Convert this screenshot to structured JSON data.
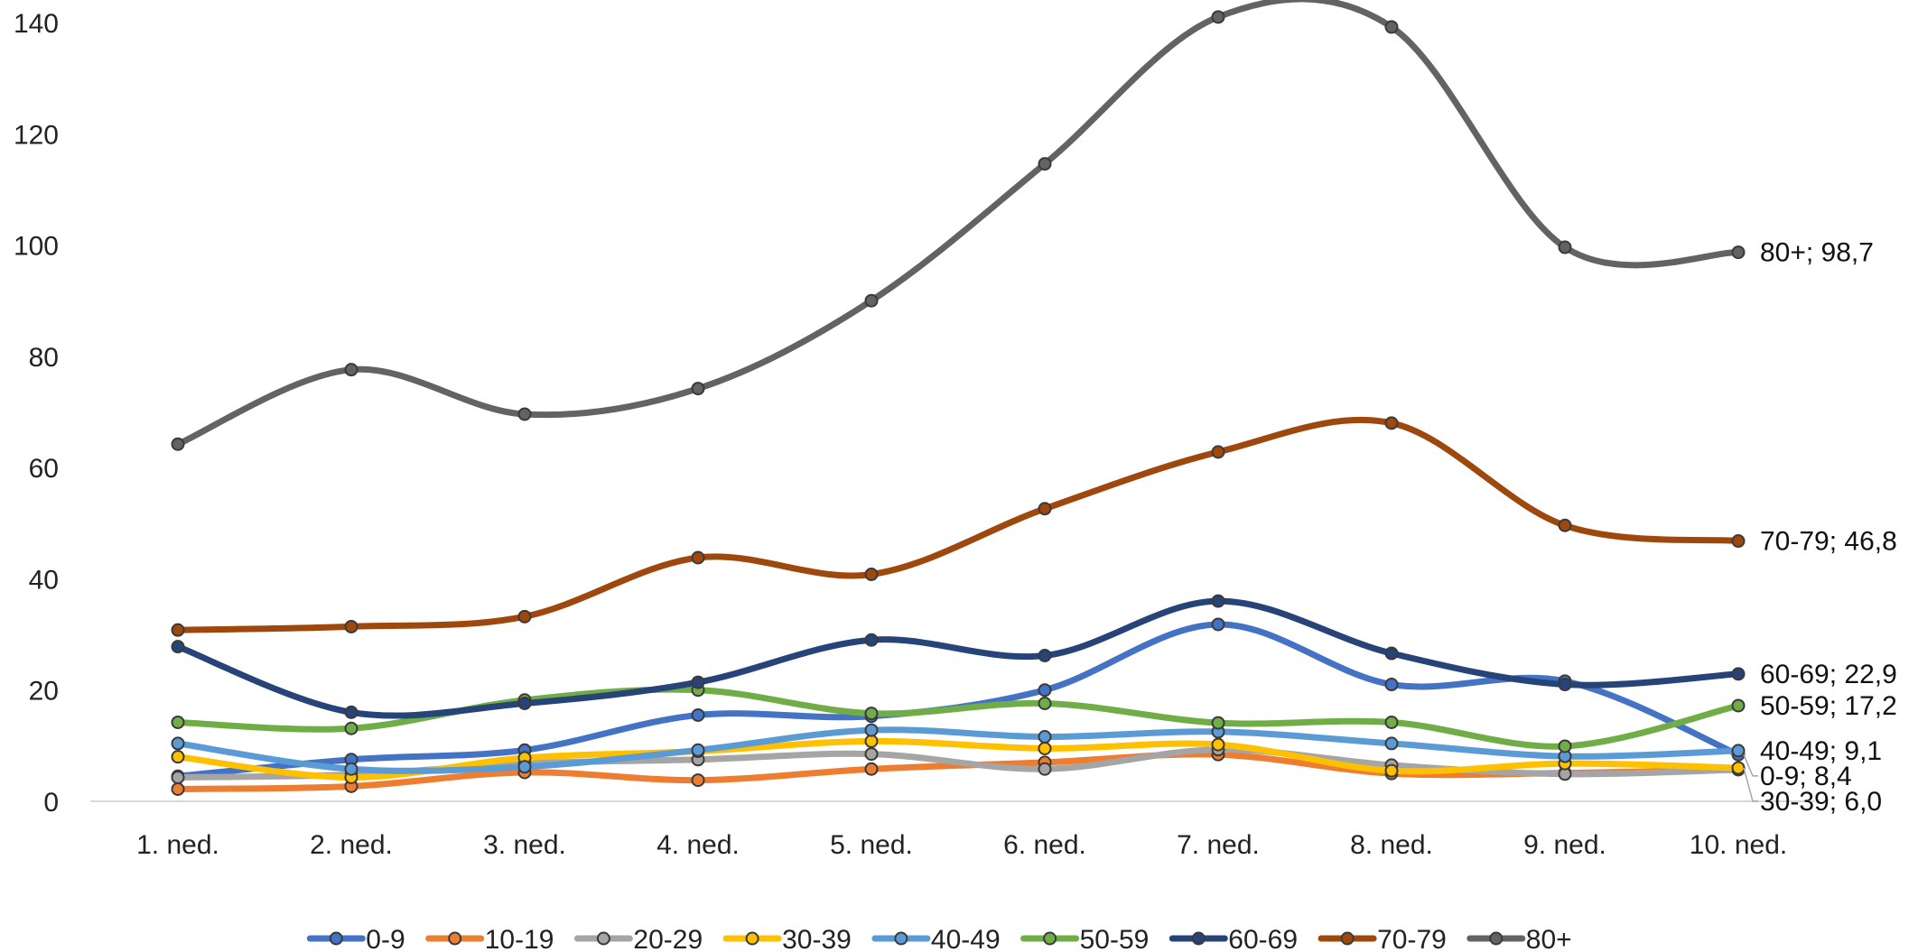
{
  "chart_data": {
    "type": "line",
    "title": "",
    "xlabel": "",
    "ylabel": "",
    "ylim": [
      0,
      140
    ],
    "yticks": [
      0,
      20,
      40,
      60,
      80,
      100,
      120,
      140
    ],
    "grid": false,
    "smooth": true,
    "legend_position": "bottom",
    "categories": [
      "1. ned.",
      "2. ned.",
      "3. ned.",
      "4. ned.",
      "5. ned.",
      "6. ned.",
      "7. ned.",
      "8. ned.",
      "9. ned.",
      "10. ned."
    ],
    "series": [
      {
        "name": "0-9",
        "color": "#4472C4",
        "values": [
          4.5,
          7.5,
          9.2,
          15.5,
          15.3,
          20.0,
          31.8,
          21.0,
          21.6,
          8.4
        ]
      },
      {
        "name": "10-19",
        "color": "#ED7D31",
        "values": [
          2.2,
          2.7,
          5.2,
          3.8,
          5.8,
          7.0,
          8.4,
          5.0,
          5.1,
          5.7
        ]
      },
      {
        "name": "20-29",
        "color": "#A5A5A5",
        "values": [
          4.3,
          4.8,
          6.8,
          7.5,
          8.5,
          5.8,
          9.3,
          6.5,
          4.9,
          5.7
        ]
      },
      {
        "name": "30-39",
        "color": "#FFC000",
        "values": [
          8.0,
          4.3,
          7.8,
          9.0,
          10.8,
          9.5,
          10.2,
          5.5,
          6.8,
          6.0
        ]
      },
      {
        "name": "40-49",
        "color": "#5B9BD5",
        "values": [
          10.4,
          5.8,
          6.2,
          9.2,
          12.8,
          11.6,
          12.5,
          10.4,
          8.1,
          9.1
        ]
      },
      {
        "name": "50-59",
        "color": "#70AD47",
        "values": [
          14.2,
          13.1,
          18.2,
          20.0,
          15.8,
          17.6,
          14.1,
          14.2,
          9.9,
          17.2
        ]
      },
      {
        "name": "60-69",
        "color": "#264478",
        "values": [
          27.8,
          16.0,
          17.6,
          21.4,
          29.0,
          26.2,
          36.0,
          26.6,
          21.0,
          22.9
        ]
      },
      {
        "name": "70-79",
        "color": "#9E480E",
        "values": [
          30.8,
          31.4,
          33.2,
          43.8,
          40.8,
          52.6,
          62.8,
          68.0,
          49.6,
          46.8
        ]
      },
      {
        "name": "80+",
        "color": "#636363",
        "values": [
          64.2,
          77.6,
          69.6,
          74.2,
          90.0,
          114.6,
          141.0,
          139.2,
          99.6,
          98.7
        ]
      }
    ],
    "end_labels": [
      {
        "series": "80+",
        "text": "80+; 98,7"
      },
      {
        "series": "70-79",
        "text": "70-79; 46,8"
      },
      {
        "series": "60-69",
        "text": "60-69; 22,9"
      },
      {
        "series": "50-59",
        "text": "50-59; 17,2"
      },
      {
        "series": "40-49",
        "text": "40-49; 9,1"
      },
      {
        "series": "0-9",
        "text": "0-9; 8,4"
      },
      {
        "series": "30-39",
        "text": "30-39; 6,0"
      }
    ]
  }
}
